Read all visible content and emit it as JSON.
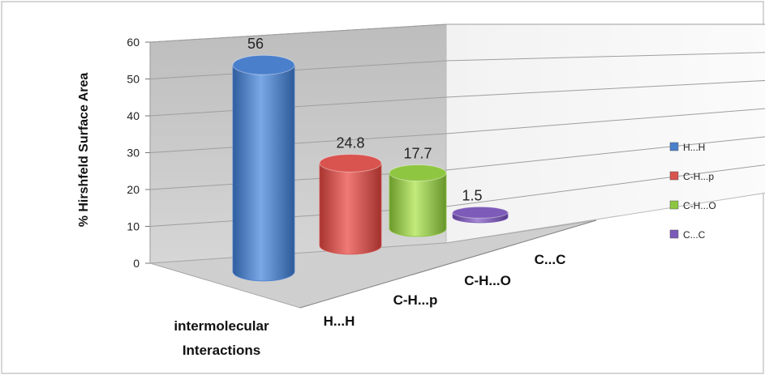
{
  "chart_data": {
    "type": "bar",
    "title": "",
    "ylabel": "% Hirshfeld Surface Area",
    "xlabel": "intermolecular Interactions",
    "ylim": [
      0,
      60
    ],
    "yticks": [
      "0",
      "10",
      "20",
      "30",
      "40",
      "50",
      "60"
    ],
    "categories": [
      "H...H",
      "C-H...p",
      "C-H...O",
      "C...C"
    ],
    "values": [
      56,
      24.8,
      17.7,
      1.5
    ],
    "data_labels": [
      "56",
      "24.8",
      "17.7",
      "1.5"
    ],
    "grid": true,
    "style": "3d-cylinder",
    "legend": {
      "position": "right",
      "entries": [
        "H...H",
        "C-H...p",
        "C-H...O",
        "C...C"
      ]
    },
    "colors": [
      "#4a7fcc",
      "#d9534f",
      "#8fc641",
      "#7d5bb8"
    ]
  }
}
